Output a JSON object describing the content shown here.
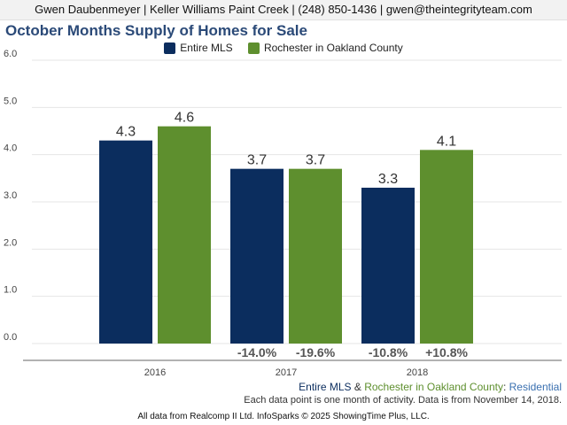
{
  "header": {
    "contact": "Gwen Daubenmeyer | Keller Williams Paint Creek | (248) 850-1436 | gwen@theintegrityteam.com"
  },
  "colors": {
    "entire_mls": "#0b2d5e",
    "rochester": "#5e8f2e",
    "title": "#2b4a78",
    "residential": "#3a70b0"
  },
  "footer": {
    "series_entire": "Entire MLS",
    "amp": " & ",
    "series_rochester": "Rochester in Oakland County",
    "colon": ": ",
    "residential": "Residential",
    "note": "Each data point is one month of activity. Data is from November 14, 2018.",
    "source": "All data from Realcomp II Ltd. InfoSparks © 2025 ShowingTime Plus, LLC."
  },
  "chart_data": {
    "type": "bar",
    "title": "October Months Supply of Homes for Sale",
    "categories": [
      "2016",
      "2017",
      "2018"
    ],
    "series": [
      {
        "name": "Entire MLS",
        "values": [
          4.3,
          3.7,
          3.3
        ],
        "labels": [
          "4.3",
          "3.7",
          "3.3"
        ],
        "changes": [
          "",
          "-14.0%",
          "-10.8%"
        ]
      },
      {
        "name": "Rochester in Oakland County",
        "values": [
          4.6,
          3.7,
          4.1
        ],
        "labels": [
          "4.6",
          "3.7",
          "4.1"
        ],
        "changes": [
          "",
          "-19.6%",
          "+10.8%"
        ]
      }
    ],
    "yticks": [
      "0.0",
      "1.0",
      "2.0",
      "3.0",
      "4.0",
      "5.0",
      "6.0"
    ],
    "ylim": [
      0,
      6
    ],
    "xlabel": "",
    "ylabel": "",
    "grid": true,
    "legend": "top-center"
  }
}
